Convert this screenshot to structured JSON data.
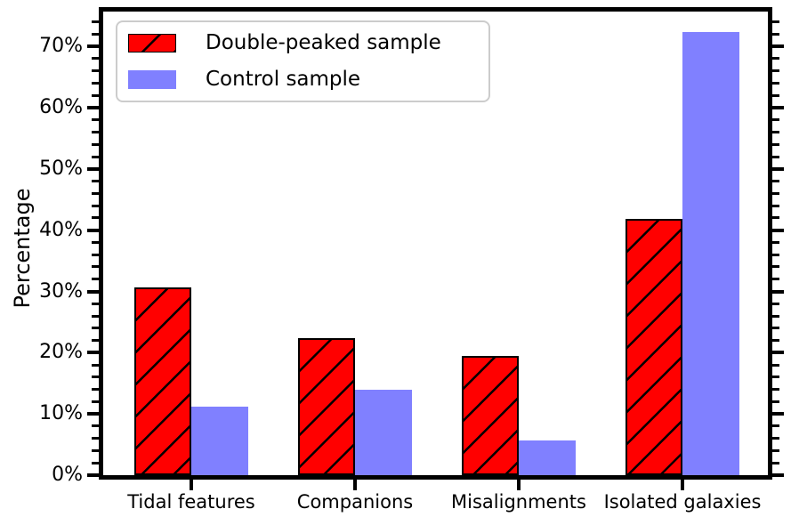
{
  "figure_title": "",
  "chart_data": {
    "type": "bar",
    "title": "",
    "xlabel": "",
    "ylabel": "Percentage",
    "categories": [
      "Tidal features",
      "Companions",
      "Misalignments",
      "Isolated galaxies"
    ],
    "series": [
      {
        "name": "Double-peaked sample",
        "color": "#ff0000",
        "edgecolor": "#000000",
        "hatch": "/",
        "values": [
          30.6,
          22.4,
          19.4,
          41.8
        ]
      },
      {
        "name": "Control sample",
        "color": "#8080ff",
        "edgecolor": null,
        "hatch": null,
        "values": [
          11.2,
          14.0,
          5.6,
          72.3
        ]
      }
    ],
    "ylim": [
      0,
      75.7
    ],
    "yticks": {
      "values": [
        0,
        10,
        20,
        30,
        40,
        50,
        60,
        70
      ],
      "labels": [
        "0%",
        "10%",
        "20%",
        "30%",
        "40%",
        "50%",
        "60%",
        "70%"
      ],
      "major_step": 10,
      "minor_step": 2
    },
    "grid": false,
    "legend_position": "upper left",
    "spine_color": "#000000",
    "background_color": "#ffffff"
  }
}
